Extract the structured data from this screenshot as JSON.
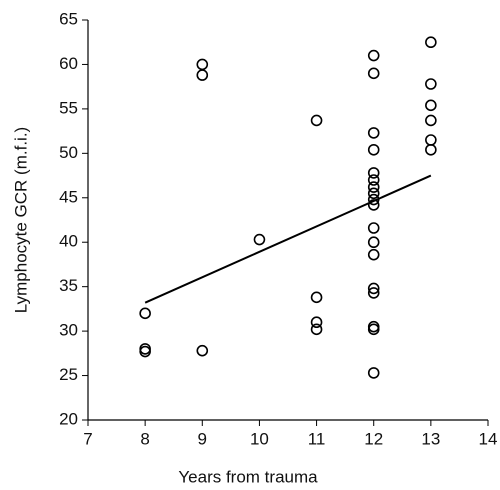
{
  "chart_data": {
    "type": "scatter",
    "xlabel": "Years from trauma",
    "ylabel": "Lymphocyte GCR (m.f.i.)",
    "x": [
      8,
      8,
      8,
      9,
      9,
      9,
      10,
      11,
      11,
      11,
      11,
      12,
      12,
      12,
      12,
      12,
      12,
      12,
      12,
      12,
      12,
      12,
      12,
      12,
      12,
      12,
      12,
      12,
      12,
      13,
      13,
      13,
      13,
      13,
      13
    ],
    "values": [
      32.0,
      28.0,
      27.7,
      60.0,
      58.8,
      27.8,
      40.3,
      53.7,
      33.8,
      31.0,
      30.2,
      61.0,
      59.0,
      52.3,
      50.4,
      47.8,
      47.0,
      46.2,
      45.5,
      44.8,
      44.2,
      41.6,
      40.0,
      38.6,
      34.8,
      34.3,
      30.5,
      30.2,
      25.3,
      62.5,
      57.8,
      55.4,
      53.7,
      51.5,
      50.4
    ],
    "trend_line": {
      "x": [
        8,
        13
      ],
      "values": [
        33.2,
        47.5
      ]
    },
    "color": "#000000",
    "xlim": [
      7,
      14
    ],
    "xticks": [
      7,
      8,
      9,
      10,
      11,
      12,
      13,
      14
    ],
    "ylim": [
      20,
      65
    ],
    "yticks": [
      20,
      25,
      30,
      35,
      40,
      45,
      50,
      55,
      60,
      65
    ],
    "grid": false
  }
}
